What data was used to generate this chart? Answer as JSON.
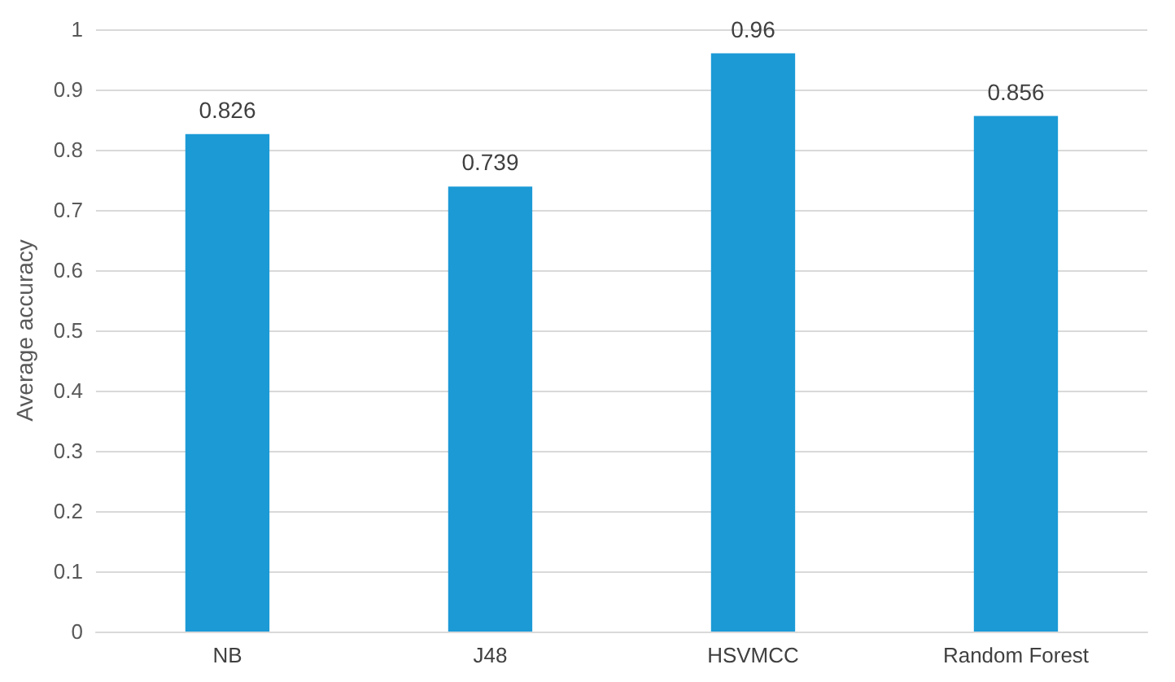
{
  "chart_data": {
    "type": "bar",
    "ylabel": "Average accuracy",
    "categories": [
      "NB",
      "J48",
      "HSVMCC",
      "Random Forest"
    ],
    "values": [
      0.826,
      0.739,
      0.96,
      0.856
    ],
    "color": "#1b9ad6",
    "ylim": [
      0,
      1
    ],
    "yticks": [
      0,
      0.1,
      0.2,
      0.3,
      0.4,
      0.5,
      0.6,
      0.7,
      0.8,
      0.9,
      1
    ],
    "grid": "y",
    "data_labels": true
  }
}
